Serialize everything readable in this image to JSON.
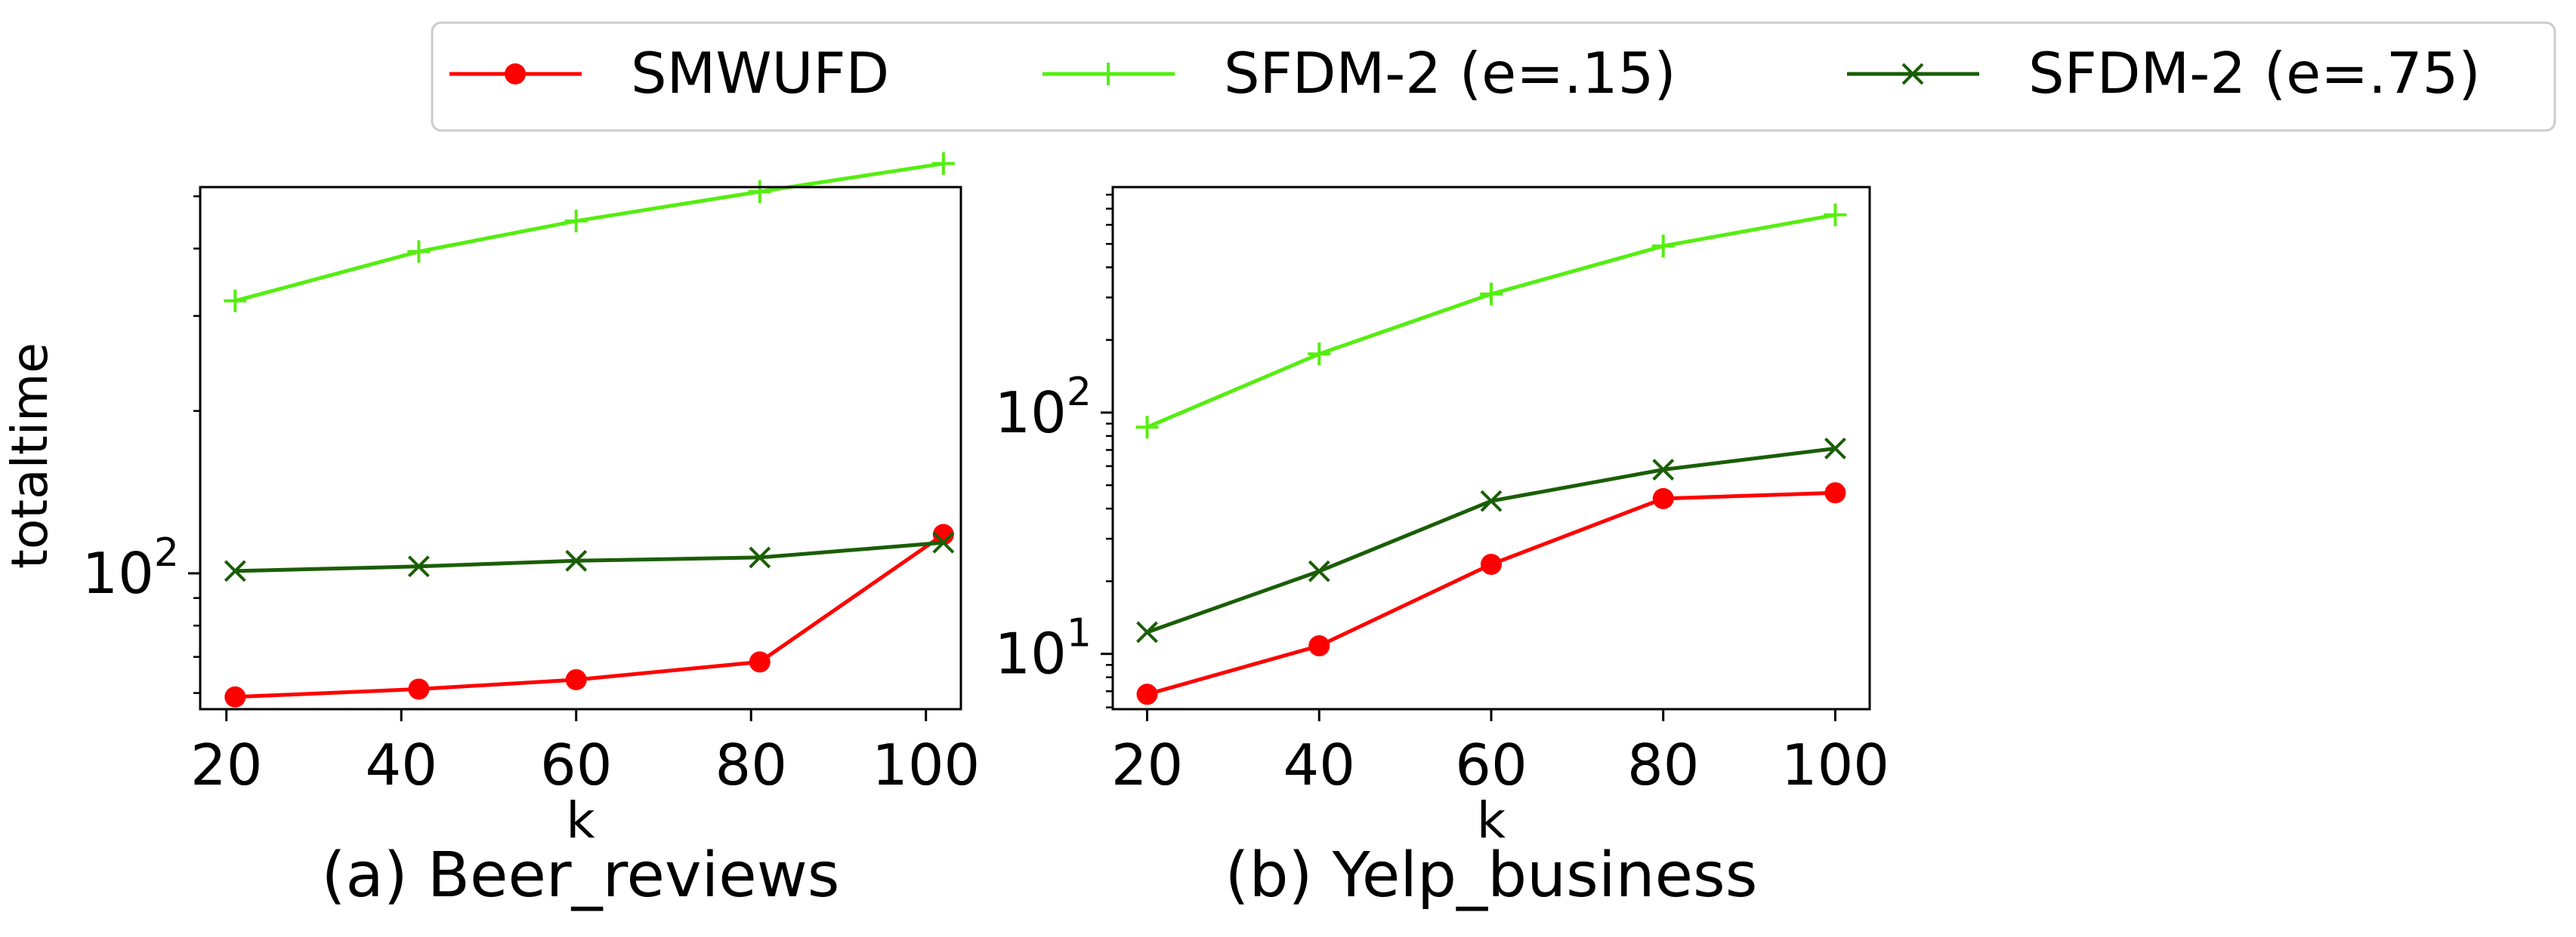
{
  "legend": {
    "placement": "top-center",
    "entries": [
      {
        "label": "SMWUFD",
        "color": "#ff0000",
        "marker": "circle"
      },
      {
        "label": "SFDM-2 (e=.15)",
        "color": "#55ee11",
        "marker": "plus"
      },
      {
        "label": "SFDM-2 (e=.75)",
        "color": "#1a5e05",
        "marker": "x"
      }
    ]
  },
  "chart_data": [
    {
      "type": "line",
      "caption": "(a) Beer_reviews",
      "xlabel": "k",
      "ylabel": "totaltime",
      "yscale": "log",
      "xlim": [
        17,
        104
      ],
      "ylim": [
        56,
        520
      ],
      "xticks": [
        20,
        40,
        60,
        80,
        100
      ],
      "yticks": [
        {
          "value": 100,
          "base": "10",
          "exp": "2"
        }
      ],
      "grid": false,
      "series": [
        {
          "name": "SMWUFD",
          "x": [
            21,
            42,
            60,
            81,
            102
          ],
          "y": [
            59,
            61,
            63.5,
            68.5,
            118
          ]
        },
        {
          "name": "SFDM-2 (e=.15)",
          "x": [
            21,
            42,
            60,
            81,
            102
          ],
          "y": [
            320,
            395,
            450,
            510,
            575
          ]
        },
        {
          "name": "SFDM-2 (e=.75)",
          "x": [
            21,
            42,
            60,
            81,
            102
          ],
          "y": [
            101,
            103,
            105.5,
            107,
            114
          ]
        }
      ]
    },
    {
      "type": "line",
      "caption": "(b) Yelp_business",
      "xlabel": "k",
      "ylabel": "",
      "yscale": "log",
      "xlim": [
        16,
        104
      ],
      "ylim": [
        5.9,
        860
      ],
      "xticks": [
        20,
        40,
        60,
        80,
        100
      ],
      "yticks": [
        {
          "value": 10,
          "base": "10",
          "exp": "1"
        },
        {
          "value": 100,
          "base": "10",
          "exp": "2"
        }
      ],
      "grid": false,
      "series": [
        {
          "name": "SMWUFD",
          "x": [
            20,
            40,
            60,
            80,
            100
          ],
          "y": [
            6.8,
            10.8,
            23.5,
            44,
            46.5
          ]
        },
        {
          "name": "SFDM-2 (e=.15)",
          "x": [
            20,
            40,
            60,
            80,
            100
          ],
          "y": [
            87,
            175,
            310,
            490,
            660
          ]
        },
        {
          "name": "SFDM-2 (e=.75)",
          "x": [
            20,
            40,
            60,
            80,
            100
          ],
          "y": [
            12.3,
            22,
            43,
            58,
            71
          ]
        }
      ]
    }
  ]
}
